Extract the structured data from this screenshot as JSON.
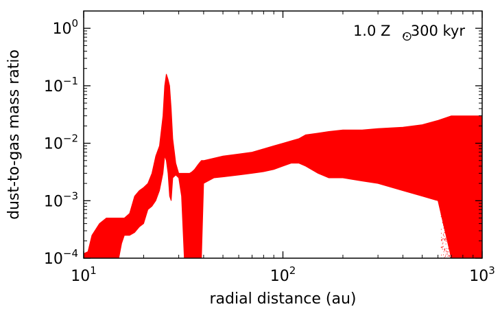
{
  "chart_data": {
    "type": "scatter",
    "annotation_prefix": "1.0 Z",
    "annotation_suffix": ", 300 kyr",
    "annotation_symbol": "sun",
    "xlabel": "radial distance (au)",
    "ylabel": "dust-to-gas mass ratio",
    "xscale": "log",
    "yscale": "log",
    "xlim": [
      10,
      1000
    ],
    "ylim": [
      0.0001,
      2
    ],
    "xticks": [
      {
        "value": 10,
        "base": "10",
        "exp": "1"
      },
      {
        "value": 100,
        "base": "10",
        "exp": "2"
      },
      {
        "value": 1000,
        "base": "10",
        "exp": "3"
      }
    ],
    "yticks": [
      {
        "value": 0.0001,
        "base": "10",
        "exp": "−4"
      },
      {
        "value": 0.001,
        "base": "10",
        "exp": "−3"
      },
      {
        "value": 0.01,
        "base": "10",
        "exp": "−2"
      },
      {
        "value": 0.1,
        "base": "10",
        "exp": "−1"
      },
      {
        "value": 1,
        "base": "10",
        "exp": "0"
      }
    ],
    "grid": false,
    "series": [
      {
        "color": "#ff0000",
        "band": {
          "x": [
            10,
            10.5,
            11,
            12,
            13,
            14,
            14.5,
            15,
            15.5,
            16,
            17,
            18,
            19,
            20,
            21,
            22,
            23,
            24,
            25,
            25.5,
            26,
            26.5,
            27,
            27.5,
            28,
            29,
            30,
            31,
            32,
            33,
            34,
            35,
            36,
            37,
            38,
            39,
            40,
            45,
            50,
            60,
            70,
            80,
            90,
            100,
            110,
            120,
            130,
            150,
            170,
            200,
            250,
            300,
            400,
            500,
            600,
            700,
            800,
            900,
            1000
          ],
          "upper": [
            0.00012,
            0.00013,
            0.00025,
            0.0004,
            0.0005,
            0.0005,
            0.0005,
            0.0005,
            0.0005,
            0.0005,
            0.0006,
            0.0012,
            0.0015,
            0.0017,
            0.002,
            0.003,
            0.006,
            0.009,
            0.03,
            0.1,
            0.16,
            0.13,
            0.1,
            0.04,
            0.012,
            0.0045,
            0.003,
            0.003,
            0.003,
            0.003,
            0.003,
            0.0032,
            0.0035,
            0.004,
            0.0045,
            0.005,
            0.005,
            0.0055,
            0.006,
            0.0065,
            0.007,
            0.008,
            0.009,
            0.01,
            0.011,
            0.012,
            0.014,
            0.015,
            0.016,
            0.017,
            0.017,
            0.018,
            0.019,
            0.021,
            0.025,
            0.03,
            0.03,
            0.03,
            0.03
          ],
          "lower": [
            0.0001,
            0.0001,
            0.0001,
            0.0001,
            0.0001,
            0.0001,
            0.0001,
            0.0001,
            0.00018,
            0.00025,
            0.00025,
            0.00028,
            0.00035,
            0.0004,
            0.0007,
            0.0008,
            0.001,
            0.0015,
            0.003,
            0.006,
            0.005,
            0.003,
            0.0012,
            0.001,
            0.0025,
            0.0028,
            0.0025,
            0.0012,
            0.0001,
            0.0001,
            0.0001,
            0.0001,
            0.0001,
            0.0001,
            0.0001,
            0.0001,
            0.002,
            0.0025,
            0.0026,
            0.0028,
            0.003,
            0.0032,
            0.0035,
            0.004,
            0.0045,
            0.0045,
            0.004,
            0.003,
            0.0025,
            0.0025,
            0.0022,
            0.002,
            0.0015,
            0.0012,
            0.001,
            0.0001,
            0.0001,
            0.0001,
            0.0001
          ]
        }
      }
    ]
  }
}
